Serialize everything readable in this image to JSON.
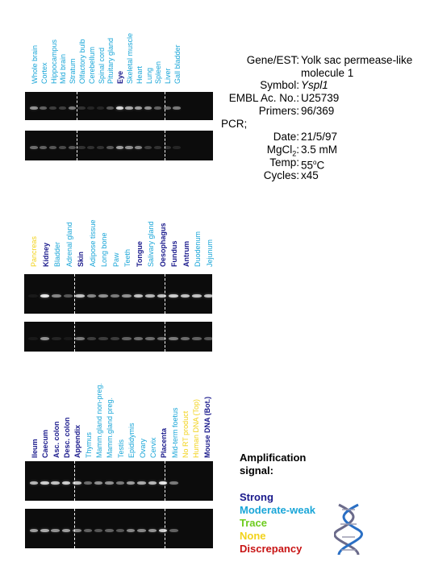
{
  "colors": {
    "strong": "#1a1a8c",
    "moderate": "#1aa6d8",
    "trace": "#6ecc1f",
    "none": "#f2d21a",
    "discrepancy": "#c81414"
  },
  "info": {
    "rows": [
      {
        "key": "Gene/EST:",
        "value": "Yolk sac permease-like",
        "italic": false
      },
      {
        "key": "",
        "value": "molecule 1",
        "italic": false
      },
      {
        "key": "Symbol:",
        "value": "Yspl1",
        "italic": true
      },
      {
        "key": "EMBL Ac. No.:",
        "value": "U25739",
        "italic": false
      },
      {
        "key": "Primers:",
        "value": "96/369",
        "italic": false
      },
      {
        "key": "PCR;",
        "value": "",
        "italic": false
      },
      {
        "key": "Date:",
        "value": "21/5/97",
        "italic": false
      },
      {
        "key": "MgCl",
        "sub": "2",
        "value": "3.5 mM",
        "italic": false
      },
      {
        "key": "Temp:",
        "value": "55",
        "sup": "o",
        "tail": "C",
        "italic": false
      },
      {
        "key": "Cycles:",
        "value": "x45",
        "italic": false
      }
    ]
  },
  "panels": [
    {
      "labels": [
        {
          "text": "Whole brain",
          "level": "moderate"
        },
        {
          "text": "Cortex",
          "level": "moderate"
        },
        {
          "text": "Hippocampus",
          "level": "moderate"
        },
        {
          "text": "Mid brain",
          "level": "moderate"
        },
        {
          "text": "Stratum",
          "level": "moderate"
        },
        {
          "text": "Olfactory bulb",
          "level": "moderate"
        },
        {
          "text": "Cerebellum",
          "level": "moderate"
        },
        {
          "text": "Spinal cord",
          "level": "moderate"
        },
        {
          "text": "Pituitary gland",
          "level": "moderate"
        },
        {
          "text": "Eye",
          "level": "strong"
        },
        {
          "text": "Skeletal muscle",
          "level": "moderate"
        },
        {
          "text": "Heart",
          "level": "moderate"
        },
        {
          "text": "Lung",
          "level": "moderate"
        },
        {
          "text": "Spleen",
          "level": "moderate"
        },
        {
          "text": "Liver",
          "level": "moderate"
        },
        {
          "text": "Gall bladder",
          "level": "moderate"
        }
      ],
      "gel1": [
        0.55,
        0.35,
        0.2,
        0.2,
        0.45,
        0.15,
        0.1,
        0.1,
        0.3,
        0.85,
        0.65,
        0.6,
        0.55,
        0.35,
        0.4,
        0.45
      ],
      "gel2": [
        0.4,
        0.35,
        0.3,
        0.25,
        0.3,
        0.15,
        0.15,
        0.15,
        0.3,
        0.6,
        0.55,
        0.5,
        0.2,
        0.15,
        0.15,
        0.1
      ]
    },
    {
      "labels": [
        {
          "text": "Pancreas",
          "level": "none"
        },
        {
          "text": "Kidney",
          "level": "strong"
        },
        {
          "text": "Bladder",
          "level": "moderate"
        },
        {
          "text": "Adrenal gland",
          "level": "moderate"
        },
        {
          "text": "Skin",
          "level": "strong"
        },
        {
          "text": "Adipose tissue",
          "level": "moderate"
        },
        {
          "text": "Long bone",
          "level": "moderate"
        },
        {
          "text": "Paw",
          "level": "moderate"
        },
        {
          "text": "Teeth",
          "level": "moderate"
        },
        {
          "text": "Tongue",
          "level": "strong"
        },
        {
          "text": "Salivary gland",
          "level": "moderate"
        },
        {
          "text": "Oesophagus",
          "level": "strong"
        },
        {
          "text": "Fundus",
          "level": "strong"
        },
        {
          "text": "Antrum",
          "level": "strong"
        },
        {
          "text": "Duodenum",
          "level": "moderate"
        },
        {
          "text": "Jejunum",
          "level": "moderate"
        }
      ],
      "gel1": [
        0.05,
        0.9,
        0.5,
        0.3,
        0.75,
        0.5,
        0.55,
        0.45,
        0.55,
        0.75,
        0.7,
        0.75,
        0.8,
        0.75,
        0.75,
        0.75
      ],
      "gel2": [
        0.05,
        0.55,
        0.1,
        0.05,
        0.45,
        0.2,
        0.2,
        0.2,
        0.35,
        0.4,
        0.4,
        0.4,
        0.45,
        0.4,
        0.35,
        0.3
      ]
    },
    {
      "labels": [
        {
          "text": "Ileum",
          "level": "strong"
        },
        {
          "text": "Caecum",
          "level": "strong"
        },
        {
          "text": "Asc. colon",
          "level": "strong"
        },
        {
          "text": "Desc. colon",
          "level": "strong"
        },
        {
          "text": "Appendix",
          "level": "strong"
        },
        {
          "text": "Thymus",
          "level": "moderate"
        },
        {
          "text": "Mamm.gland non-preg.",
          "level": "moderate"
        },
        {
          "text": "Mamm.gland preg.",
          "level": "moderate"
        },
        {
          "text": "Testis",
          "level": "moderate"
        },
        {
          "text": "Epididymis",
          "level": "moderate"
        },
        {
          "text": "Ovary",
          "level": "moderate"
        },
        {
          "text": "Cervix",
          "level": "moderate"
        },
        {
          "text": "Placenta",
          "level": "strong"
        },
        {
          "text": "Mid-term foetus",
          "level": "moderate"
        },
        {
          "text": "No RT product",
          "level": "none"
        },
        {
          "text": "Human DNA (Top)",
          "level": "none"
        },
        {
          "text": "Mouse DNA (Bot.)",
          "level": "strong"
        }
      ],
      "gel1": [
        0.7,
        0.8,
        0.75,
        0.8,
        0.75,
        0.4,
        0.55,
        0.55,
        0.45,
        0.6,
        0.65,
        0.7,
        0.9,
        0.45,
        0.0,
        0.0,
        0.0
      ],
      "gel2": [
        0.6,
        0.65,
        0.55,
        0.6,
        0.5,
        0.35,
        0.3,
        0.35,
        0.3,
        0.5,
        0.5,
        0.55,
        0.8,
        0.35,
        0.0,
        0.0,
        0.0
      ]
    }
  ],
  "legend": {
    "title_line1": "Amplification",
    "title_line2": "signal:",
    "items": [
      {
        "text": "Strong",
        "level": "strong"
      },
      {
        "text": "Moderate-weak",
        "level": "moderate"
      },
      {
        "text": "Trace",
        "level": "trace"
      },
      {
        "text": "None",
        "level": "none"
      },
      {
        "text": "Discrepancy",
        "level": "discrepancy"
      }
    ]
  }
}
